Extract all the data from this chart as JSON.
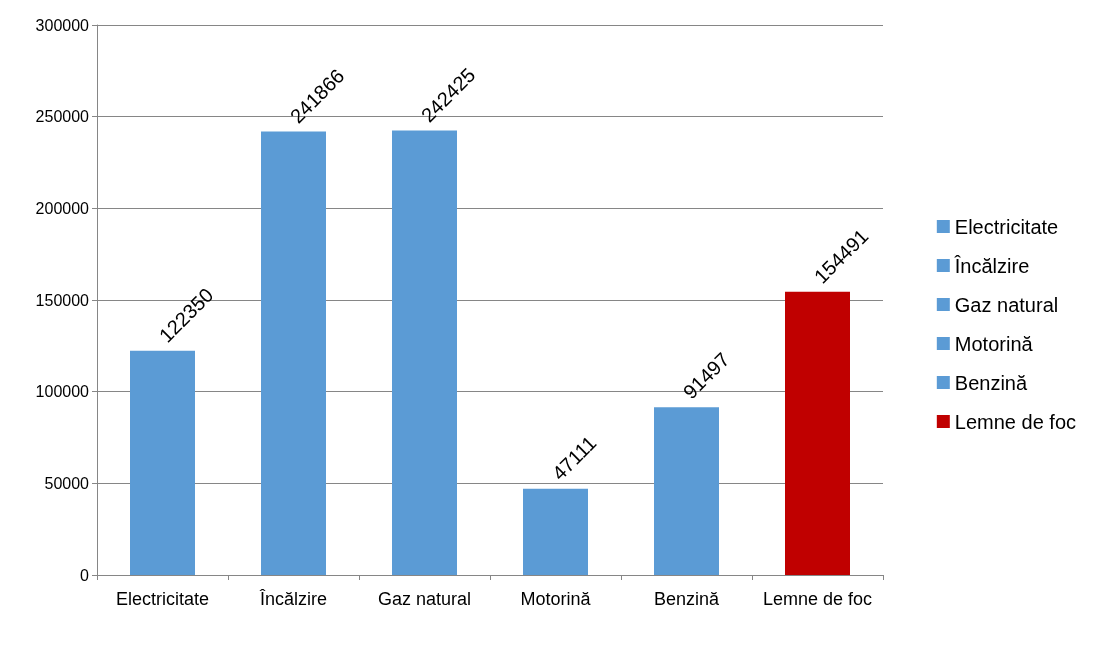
{
  "chart_data": {
    "type": "bar",
    "stacked": true,
    "categories": [
      "Electricitate",
      "Încălzire",
      "Gaz natural",
      "Motorină",
      "Benzină",
      "Lemne de foc"
    ],
    "series": [
      {
        "name": "Electricitate",
        "color": "#5b9bd5",
        "values": [
          122350,
          null,
          null,
          null,
          null,
          null
        ]
      },
      {
        "name": "Încălzire",
        "color": "#5b9bd5",
        "values": [
          null,
          241866,
          null,
          null,
          null,
          null
        ]
      },
      {
        "name": "Gaz natural",
        "color": "#5b9bd5",
        "values": [
          null,
          null,
          242425,
          null,
          null,
          null
        ]
      },
      {
        "name": "Motorină",
        "color": "#5b9bd5",
        "values": [
          null,
          null,
          null,
          47111,
          null,
          null
        ]
      },
      {
        "name": "Benzină",
        "color": "#5b9bd5",
        "values": [
          null,
          null,
          null,
          null,
          91497,
          null
        ]
      },
      {
        "name": "Lemne de foc",
        "color": "#c00000",
        "values": [
          null,
          null,
          null,
          null,
          null,
          154491
        ]
      }
    ],
    "ylim": [
      0,
      300000
    ],
    "yticks": [
      0,
      50000,
      100000,
      150000,
      200000,
      250000,
      300000
    ],
    "grid": "y",
    "legend": "right",
    "data_labels": true
  }
}
